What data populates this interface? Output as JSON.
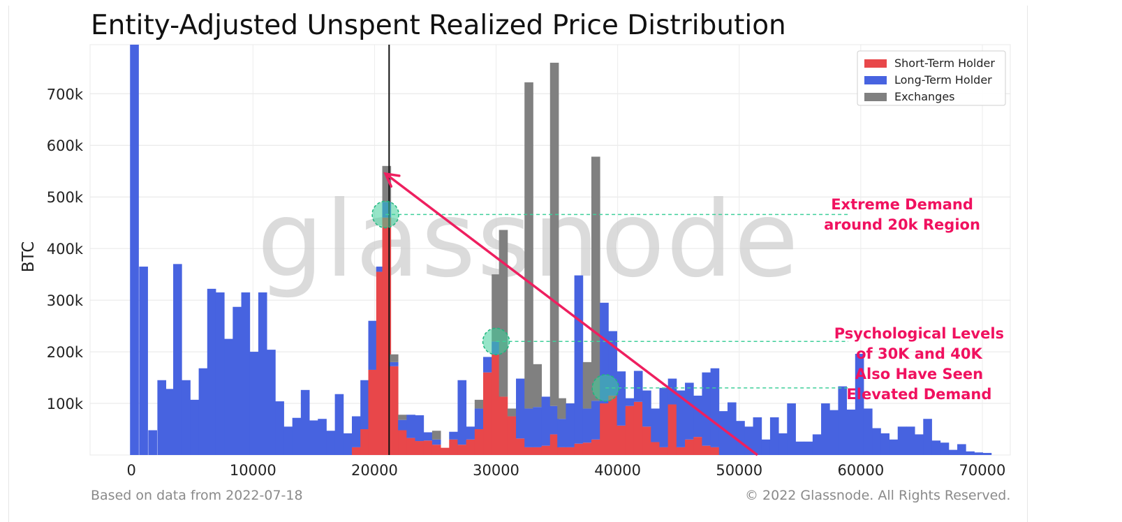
{
  "title": "Entity-Adjusted Unspent Realized Price Distribution",
  "footer": {
    "left": "Based on data from 2022-07-18",
    "right": "© 2022 Glassnode. All Rights Reserved."
  },
  "watermark": "glassnode",
  "colors": {
    "sth": "#e8474a",
    "lth": "#4763e0",
    "exchanges": "#808080",
    "arrow": "#ee1f5f",
    "annotation": "#f0115f",
    "marker": "#3fcf9a"
  },
  "chart_data": {
    "type": "bar",
    "stacked": true,
    "xlabel": "",
    "ylabel": "BTC",
    "xlim": [
      -3400,
      72300
    ],
    "ylim": [
      0,
      795000
    ],
    "x_ticks": [
      0,
      10000,
      20000,
      30000,
      40000,
      50000,
      60000,
      70000
    ],
    "x_tick_labels": [
      "0",
      "10000",
      "20000",
      "30000",
      "40000",
      "50000",
      "60000",
      "70000"
    ],
    "y_ticks": [
      100000,
      200000,
      300000,
      400000,
      500000,
      600000,
      700000
    ],
    "y_tick_labels": [
      "100k",
      "200k",
      "300k",
      "400k",
      "500k",
      "600k",
      "700k"
    ],
    "grid": true,
    "legend_position": "top-right",
    "bin_width": 500,
    "series": [
      {
        "name": "Short-Term Holder",
        "color": "#e8474a"
      },
      {
        "name": "Long-Term Holder",
        "color": "#4763e0"
      },
      {
        "name": "Exchanges",
        "color": "#808080"
      }
    ],
    "bins": [
      {
        "x": 250,
        "sth": 0,
        "lth": 800000,
        "ex": 0
      },
      {
        "x": 1000,
        "sth": 0,
        "lth": 365000,
        "ex": 0
      },
      {
        "x": 1750,
        "sth": 0,
        "lth": 48000,
        "ex": 0
      },
      {
        "x": 2500,
        "sth": 0,
        "lth": 145000,
        "ex": 0
      },
      {
        "x": 3100,
        "sth": 0,
        "lth": 128000,
        "ex": 0
      },
      {
        "x": 3800,
        "sth": 0,
        "lth": 370000,
        "ex": 0
      },
      {
        "x": 4500,
        "sth": 0,
        "lth": 145000,
        "ex": 0
      },
      {
        "x": 5200,
        "sth": 0,
        "lth": 107000,
        "ex": 0
      },
      {
        "x": 5900,
        "sth": 0,
        "lth": 168000,
        "ex": 0
      },
      {
        "x": 6600,
        "sth": 0,
        "lth": 322000,
        "ex": 0
      },
      {
        "x": 7300,
        "sth": 0,
        "lth": 315000,
        "ex": 0
      },
      {
        "x": 8000,
        "sth": 0,
        "lth": 225000,
        "ex": 0
      },
      {
        "x": 8700,
        "sth": 0,
        "lth": 287000,
        "ex": 0
      },
      {
        "x": 9400,
        "sth": 0,
        "lth": 315000,
        "ex": 0
      },
      {
        "x": 10100,
        "sth": 0,
        "lth": 200000,
        "ex": 0
      },
      {
        "x": 10800,
        "sth": 0,
        "lth": 315000,
        "ex": 0
      },
      {
        "x": 11500,
        "sth": 0,
        "lth": 204000,
        "ex": 0
      },
      {
        "x": 12200,
        "sth": 0,
        "lth": 104000,
        "ex": 0
      },
      {
        "x": 12900,
        "sth": 0,
        "lth": 55000,
        "ex": 0
      },
      {
        "x": 13600,
        "sth": 0,
        "lth": 72000,
        "ex": 0
      },
      {
        "x": 14300,
        "sth": 0,
        "lth": 126000,
        "ex": 0
      },
      {
        "x": 15000,
        "sth": 0,
        "lth": 67000,
        "ex": 0
      },
      {
        "x": 15700,
        "sth": 0,
        "lth": 70000,
        "ex": 0
      },
      {
        "x": 16400,
        "sth": 0,
        "lth": 47000,
        "ex": 0
      },
      {
        "x": 17100,
        "sth": 0,
        "lth": 118000,
        "ex": 0
      },
      {
        "x": 17800,
        "sth": 0,
        "lth": 42000,
        "ex": 0
      },
      {
        "x": 18500,
        "sth": 15000,
        "lth": 60000,
        "ex": 0
      },
      {
        "x": 19200,
        "sth": 50000,
        "lth": 95000,
        "ex": 0
      },
      {
        "x": 19850,
        "sth": 165000,
        "lth": 95000,
        "ex": 0
      },
      {
        "x": 20500,
        "sth": 355000,
        "lth": 10000,
        "ex": 0
      },
      {
        "x": 21000,
        "sth": 460000,
        "lth": 30000,
        "ex": 70000
      },
      {
        "x": 21600,
        "sth": 172000,
        "lth": 8000,
        "ex": 15000
      },
      {
        "x": 22300,
        "sth": 48000,
        "lth": 20000,
        "ex": 10000
      },
      {
        "x": 23000,
        "sth": 33000,
        "lth": 45000,
        "ex": 0
      },
      {
        "x": 23700,
        "sth": 27000,
        "lth": 50000,
        "ex": 0
      },
      {
        "x": 24400,
        "sth": 28000,
        "lth": 16000,
        "ex": 0
      },
      {
        "x": 25100,
        "sth": 20000,
        "lth": 10000,
        "ex": 17000
      },
      {
        "x": 25800,
        "sth": 14000,
        "lth": 0,
        "ex": 0
      },
      {
        "x": 26500,
        "sth": 30000,
        "lth": 15000,
        "ex": 0
      },
      {
        "x": 27200,
        "sth": 20000,
        "lth": 125000,
        "ex": 0
      },
      {
        "x": 27900,
        "sth": 30000,
        "lth": 25000,
        "ex": 0
      },
      {
        "x": 28600,
        "sth": 50000,
        "lth": 40000,
        "ex": 17000
      },
      {
        "x": 29300,
        "sth": 160000,
        "lth": 30000,
        "ex": 0
      },
      {
        "x": 30000,
        "sth": 195000,
        "lth": 25000,
        "ex": 130000
      },
      {
        "x": 30600,
        "sth": 113000,
        "lth": 0,
        "ex": 323000
      },
      {
        "x": 31300,
        "sth": 75000,
        "lth": 0,
        "ex": 15000
      },
      {
        "x": 32000,
        "sth": 32000,
        "lth": 116000,
        "ex": 0
      },
      {
        "x": 32700,
        "sth": 15000,
        "lth": 75000,
        "ex": 632000
      },
      {
        "x": 33400,
        "sth": 15000,
        "lth": 78000,
        "ex": 83000
      },
      {
        "x": 34100,
        "sth": 18000,
        "lth": 95000,
        "ex": 0
      },
      {
        "x": 34800,
        "sth": 40000,
        "lth": 55000,
        "ex": 665000
      },
      {
        "x": 35400,
        "sth": 15000,
        "lth": 55000,
        "ex": 40000
      },
      {
        "x": 36100,
        "sth": 15000,
        "lth": 85000,
        "ex": 0
      },
      {
        "x": 36800,
        "sth": 22000,
        "lth": 326000,
        "ex": 0
      },
      {
        "x": 37500,
        "sth": 24000,
        "lth": 66000,
        "ex": 90000
      },
      {
        "x": 38200,
        "sth": 30000,
        "lth": 75000,
        "ex": 473000
      },
      {
        "x": 38900,
        "sth": 100000,
        "lth": 195000,
        "ex": 0
      },
      {
        "x": 39600,
        "sth": 115000,
        "lth": 125000,
        "ex": 0
      },
      {
        "x": 40300,
        "sth": 57000,
        "lth": 105000,
        "ex": 0
      },
      {
        "x": 41000,
        "sth": 95000,
        "lth": 15000,
        "ex": 0
      },
      {
        "x": 41700,
        "sth": 103000,
        "lth": 60000,
        "ex": 0
      },
      {
        "x": 42400,
        "sth": 55000,
        "lth": 70000,
        "ex": 0
      },
      {
        "x": 43100,
        "sth": 25000,
        "lth": 65000,
        "ex": 0
      },
      {
        "x": 43800,
        "sth": 15000,
        "lth": 115000,
        "ex": 0
      },
      {
        "x": 44500,
        "sth": 98000,
        "lth": 50000,
        "ex": 0
      },
      {
        "x": 45200,
        "sth": 15000,
        "lth": 110000,
        "ex": 0
      },
      {
        "x": 45900,
        "sth": 30000,
        "lth": 110000,
        "ex": 0
      },
      {
        "x": 46600,
        "sth": 35000,
        "lth": 80000,
        "ex": 0
      },
      {
        "x": 47300,
        "sth": 18000,
        "lth": 142000,
        "ex": 0
      },
      {
        "x": 48000,
        "sth": 15000,
        "lth": 153000,
        "ex": 0
      },
      {
        "x": 48700,
        "sth": 0,
        "lth": 85000,
        "ex": 0
      },
      {
        "x": 49400,
        "sth": 0,
        "lth": 102000,
        "ex": 0
      },
      {
        "x": 50100,
        "sth": 0,
        "lth": 66000,
        "ex": 0
      },
      {
        "x": 50800,
        "sth": 0,
        "lth": 55000,
        "ex": 0
      },
      {
        "x": 51500,
        "sth": 0,
        "lth": 73000,
        "ex": 0
      },
      {
        "x": 52200,
        "sth": 0,
        "lth": 30000,
        "ex": 0
      },
      {
        "x": 52900,
        "sth": 0,
        "lth": 73000,
        "ex": 0
      },
      {
        "x": 53600,
        "sth": 0,
        "lth": 42000,
        "ex": 0
      },
      {
        "x": 54300,
        "sth": 0,
        "lth": 100000,
        "ex": 0
      },
      {
        "x": 55000,
        "sth": 0,
        "lth": 26000,
        "ex": 0
      },
      {
        "x": 55700,
        "sth": 0,
        "lth": 26000,
        "ex": 0
      },
      {
        "x": 56400,
        "sth": 0,
        "lth": 40000,
        "ex": 0
      },
      {
        "x": 57100,
        "sth": 0,
        "lth": 100000,
        "ex": 0
      },
      {
        "x": 57800,
        "sth": 0,
        "lth": 87000,
        "ex": 0
      },
      {
        "x": 58500,
        "sth": 0,
        "lth": 133000,
        "ex": 0
      },
      {
        "x": 59200,
        "sth": 0,
        "lth": 88000,
        "ex": 0
      },
      {
        "x": 59900,
        "sth": 0,
        "lth": 196000,
        "ex": 0
      },
      {
        "x": 60600,
        "sth": 0,
        "lth": 90000,
        "ex": 0
      },
      {
        "x": 61300,
        "sth": 0,
        "lth": 52000,
        "ex": 0
      },
      {
        "x": 62000,
        "sth": 0,
        "lth": 42000,
        "ex": 0
      },
      {
        "x": 62700,
        "sth": 0,
        "lth": 30000,
        "ex": 0
      },
      {
        "x": 63400,
        "sth": 0,
        "lth": 55000,
        "ex": 0
      },
      {
        "x": 64100,
        "sth": 0,
        "lth": 55000,
        "ex": 0
      },
      {
        "x": 64800,
        "sth": 0,
        "lth": 40000,
        "ex": 0
      },
      {
        "x": 65500,
        "sth": 0,
        "lth": 70000,
        "ex": 0
      },
      {
        "x": 66200,
        "sth": 0,
        "lth": 28000,
        "ex": 0
      },
      {
        "x": 66900,
        "sth": 0,
        "lth": 24000,
        "ex": 0
      },
      {
        "x": 67600,
        "sth": 0,
        "lth": 10000,
        "ex": 0
      },
      {
        "x": 68300,
        "sth": 0,
        "lth": 21000,
        "ex": 0
      },
      {
        "x": 69000,
        "sth": 0,
        "lth": 7000,
        "ex": 0
      },
      {
        "x": 69700,
        "sth": 0,
        "lth": 5000,
        "ex": 0
      },
      {
        "x": 70400,
        "sth": 0,
        "lth": 4000,
        "ex": 0
      }
    ],
    "vertical_line_x": 21200,
    "annotations": [
      {
        "lines": [
          "Extreme Demand",
          "around 20k Region"
        ],
        "x": 63400,
        "y": 480000,
        "marker_x": 20900,
        "marker_y": 466000
      },
      {
        "lines": [
          "Psychological Levels",
          "of 30K and 40K",
          "Also Have Seen",
          "Elevated Demand"
        ],
        "x": 64800,
        "y": 230000,
        "marker_x": 30000,
        "marker_y": 220000
      }
    ],
    "extra_markers": [
      {
        "x": 39000,
        "y": 130000
      }
    ],
    "arrow": {
      "from": [
        51500,
        0
      ],
      "to": [
        20900,
        545000
      ]
    }
  }
}
